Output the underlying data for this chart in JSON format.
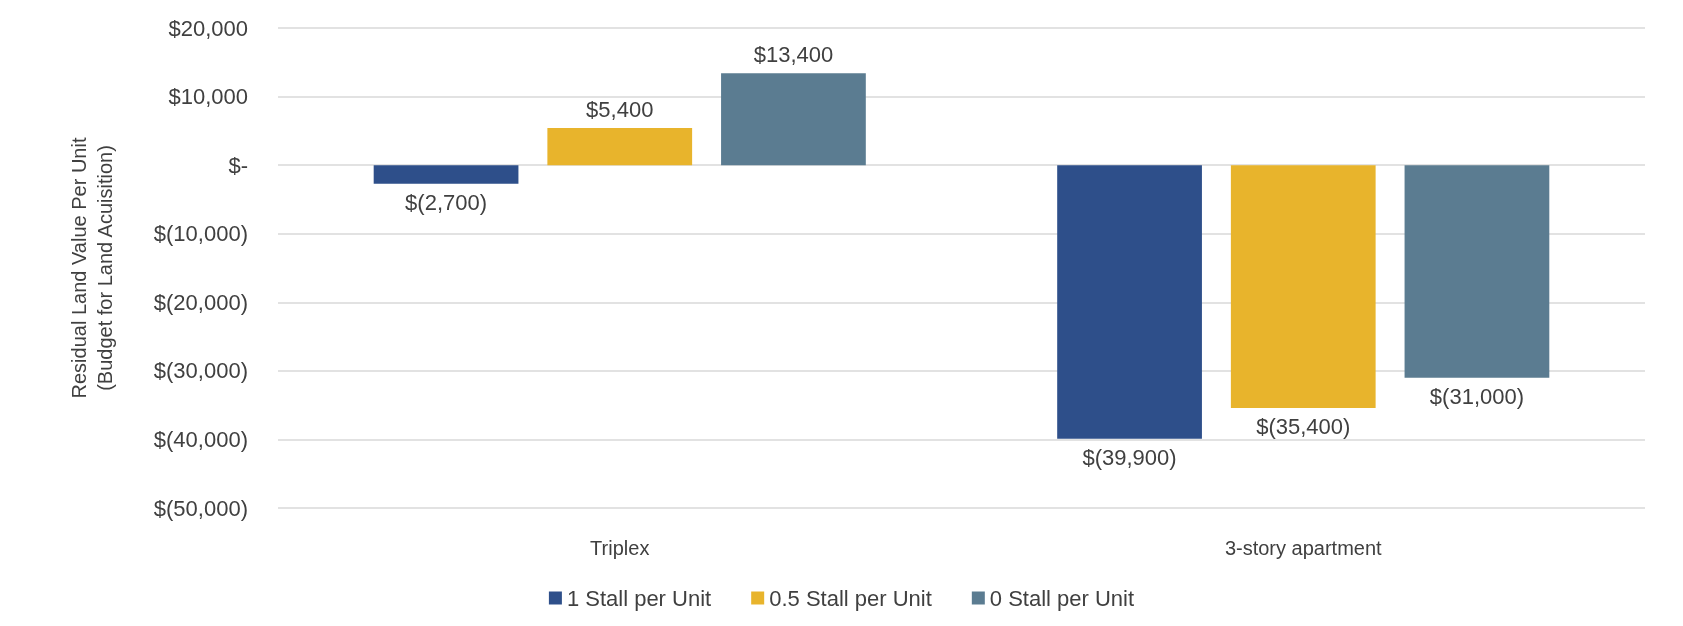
{
  "chart_data": {
    "type": "bar",
    "ylabel": "Residual Land Value Per Unit\n(Budget for Land Acuisition)",
    "categories": [
      "Triplex",
      "3-story apartment"
    ],
    "series": [
      {
        "name": "1 Stall per Unit",
        "color": "#2e4f8a",
        "values": [
          -2700,
          -39900
        ],
        "value_labels": [
          "$(2,700)",
          "$(39,900)"
        ]
      },
      {
        "name": "0.5 Stall per Unit",
        "color": "#e8b42c",
        "values": [
          5400,
          -35400
        ],
        "value_labels": [
          "$5,400",
          "$(35,400)"
        ]
      },
      {
        "name": "0 Stall per Unit",
        "color": "#5b7c91",
        "values": [
          13400,
          -31000
        ],
        "value_labels": [
          "$13,400",
          "$(31,000)"
        ]
      }
    ],
    "ylim": [
      -50000,
      20000
    ],
    "yticks": [
      {
        "value": -50000,
        "label": "$(50,000)"
      },
      {
        "value": -40000,
        "label": "$(40,000)"
      },
      {
        "value": -30000,
        "label": "$(30,000)"
      },
      {
        "value": -20000,
        "label": "$(20,000)"
      },
      {
        "value": -10000,
        "label": "$(10,000)"
      },
      {
        "value": 0,
        "label": "$-"
      },
      {
        "value": 10000,
        "label": "$10,000"
      },
      {
        "value": 20000,
        "label": "$20,000"
      }
    ],
    "grid": "y",
    "legend": "bottom"
  }
}
